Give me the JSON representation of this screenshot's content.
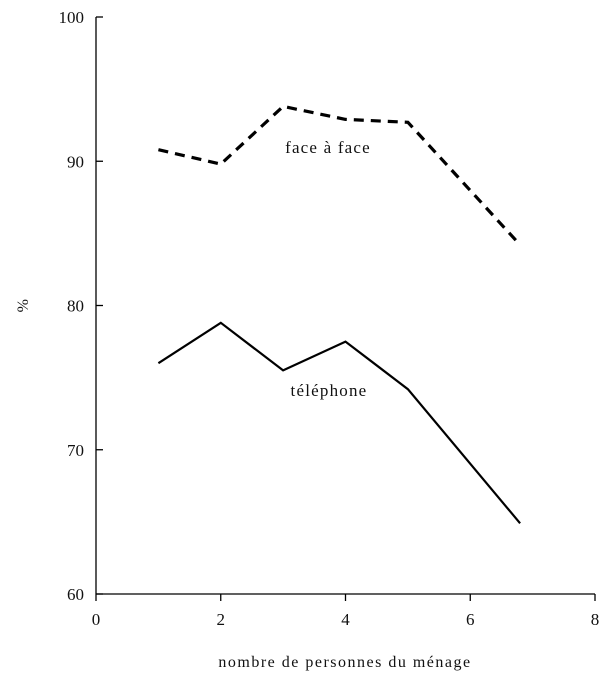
{
  "chart_data": {
    "type": "line",
    "title": "",
    "xlabel": "nombre de personnes du ménage",
    "ylabel": "%",
    "xlim": [
      0,
      8
    ],
    "ylim": [
      60,
      100
    ],
    "x_ticks": [
      0,
      2,
      4,
      6,
      8
    ],
    "y_ticks": [
      60,
      70,
      80,
      90,
      100
    ],
    "grid": false,
    "legend": "none",
    "series": [
      {
        "name": "face à face",
        "style": "dashed",
        "color": "#000000",
        "x": [
          1,
          2,
          3,
          4,
          5,
          6.8
        ],
        "y": [
          90.8,
          89.8,
          93.8,
          92.9,
          92.7,
          84.2
        ]
      },
      {
        "name": "téléphone",
        "style": "solid",
        "color": "#000000",
        "x": [
          1,
          2,
          3,
          4,
          5,
          6.8
        ],
        "y": [
          76,
          78.8,
          75.5,
          77.5,
          74.2,
          64.9
        ]
      }
    ]
  }
}
